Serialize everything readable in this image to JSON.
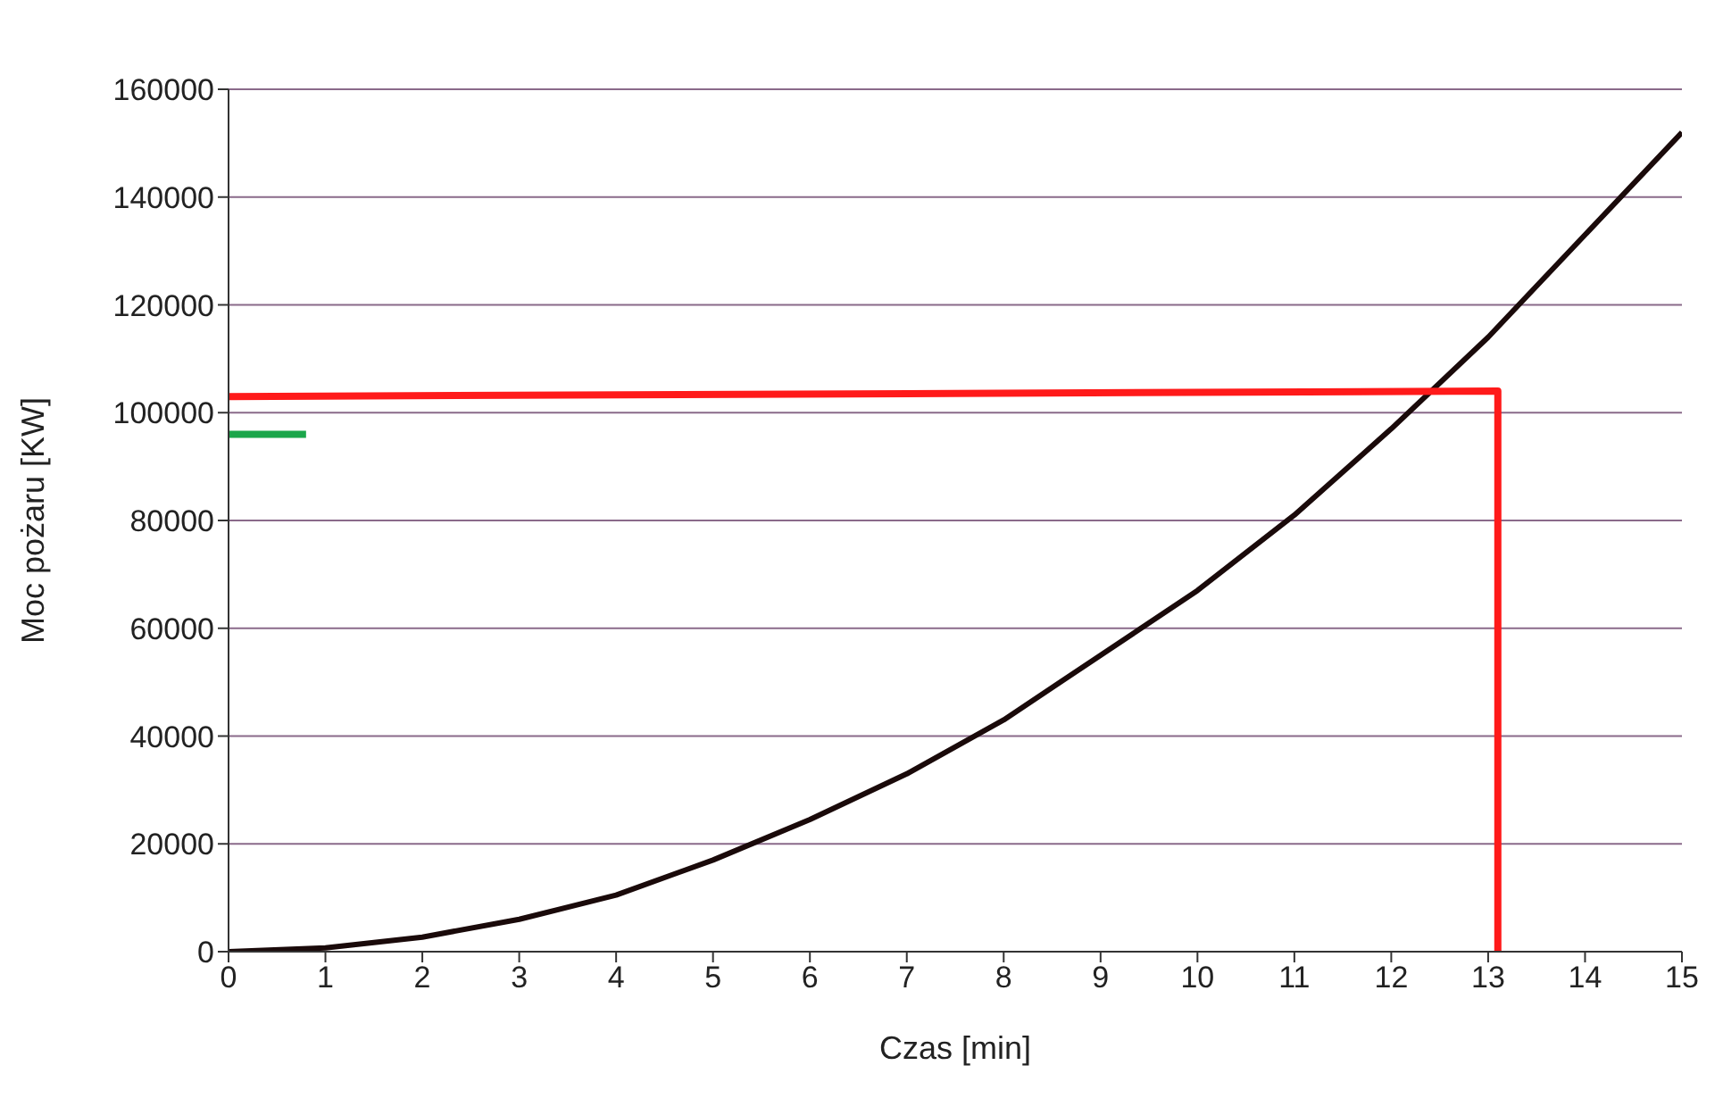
{
  "chart_data": {
    "type": "line",
    "xlabel": "Czas [min]",
    "ylabel": "Moc pożaru [KW]",
    "xlim": [
      0,
      15
    ],
    "xticks": [
      0,
      1,
      2,
      3,
      4,
      5,
      6,
      7,
      8,
      9,
      10,
      11,
      12,
      13,
      14,
      15
    ],
    "ylim": [
      0,
      160000
    ],
    "yticks": [
      0,
      20000,
      40000,
      60000,
      80000,
      100000,
      120000,
      140000,
      160000
    ],
    "grid": "y",
    "legend": false,
    "marker": "none",
    "line_style": "solid",
    "series": [
      {
        "color": "#1a0a0a",
        "x": [
          0,
          1,
          2,
          3,
          4,
          5,
          6,
          7,
          8,
          9,
          10,
          11,
          12,
          13,
          14,
          15
        ],
        "values": [
          0,
          700,
          2700,
          6000,
          10500,
          17000,
          24500,
          33000,
          43000,
          55000,
          67000,
          81000,
          97000,
          114000,
          133000,
          152000
        ]
      },
      {
        "color": "#ff1a1a",
        "x": [
          0,
          13.1,
          13.1
        ],
        "values": [
          103000,
          104000,
          0
        ]
      },
      {
        "color": "#1aa64a",
        "x": [
          0,
          0.8
        ],
        "values": [
          96000,
          96000
        ]
      }
    ]
  }
}
